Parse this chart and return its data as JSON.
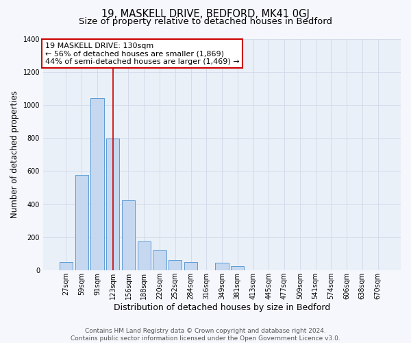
{
  "title": "19, MASKELL DRIVE, BEDFORD, MK41 0GJ",
  "subtitle": "Size of property relative to detached houses in Bedford",
  "xlabel": "Distribution of detached houses by size in Bedford",
  "ylabel": "Number of detached properties",
  "bar_labels": [
    "27sqm",
    "59sqm",
    "91sqm",
    "123sqm",
    "156sqm",
    "188sqm",
    "220sqm",
    "252sqm",
    "284sqm",
    "316sqm",
    "349sqm",
    "381sqm",
    "413sqm",
    "445sqm",
    "477sqm",
    "509sqm",
    "541sqm",
    "574sqm",
    "606sqm",
    "638sqm",
    "670sqm"
  ],
  "bar_values": [
    50,
    575,
    1040,
    795,
    425,
    175,
    120,
    62,
    50,
    0,
    48,
    25,
    0,
    0,
    0,
    0,
    0,
    0,
    0,
    0,
    0
  ],
  "bar_color": "#c5d8f0",
  "bar_edge_color": "#5b9bd5",
  "vline_x_index": 3,
  "vline_color": "#cc0000",
  "annotation_title": "19 MASKELL DRIVE: 130sqm",
  "annotation_line1": "← 56% of detached houses are smaller (1,869)",
  "annotation_line2": "44% of semi-detached houses are larger (1,469) →",
  "annotation_box_facecolor": "#ffffff",
  "annotation_box_edgecolor": "#cc0000",
  "ylim": [
    0,
    1400
  ],
  "yticks": [
    0,
    200,
    400,
    600,
    800,
    1000,
    1200,
    1400
  ],
  "grid_color": "#d0d8e8",
  "plot_bg_color": "#eaf0f8",
  "fig_bg_color": "#f5f7fc",
  "title_fontsize": 10.5,
  "subtitle_fontsize": 9.5,
  "xlabel_fontsize": 9,
  "ylabel_fontsize": 8.5,
  "tick_fontsize": 7,
  "annotation_fontsize": 8,
  "footer_fontsize": 6.5,
  "footer_line1": "Contains HM Land Registry data © Crown copyright and database right 2024.",
  "footer_line2": "Contains public sector information licensed under the Open Government Licence v3.0."
}
